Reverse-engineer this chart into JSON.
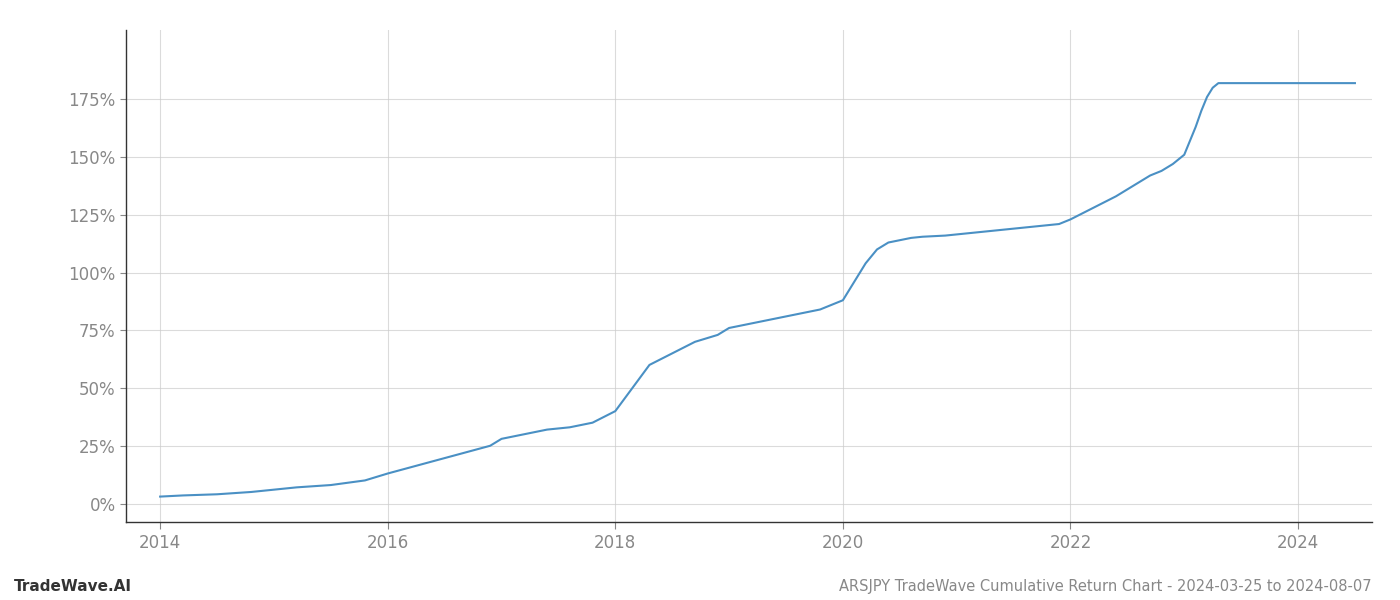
{
  "title": "ARSJPY TradeWave Cumulative Return Chart - 2024-03-25 to 2024-08-07",
  "watermark": "TradeWave.AI",
  "line_color": "#4a90c4",
  "background_color": "#ffffff",
  "grid_color": "#cccccc",
  "x_years": [
    2014,
    2016,
    2018,
    2020,
    2022,
    2024
  ],
  "data_points": [
    [
      2014.0,
      3
    ],
    [
      2014.2,
      3.5
    ],
    [
      2014.5,
      4
    ],
    [
      2014.8,
      5
    ],
    [
      2015.0,
      6
    ],
    [
      2015.2,
      7
    ],
    [
      2015.5,
      8
    ],
    [
      2015.8,
      10
    ],
    [
      2016.0,
      13
    ],
    [
      2016.3,
      17
    ],
    [
      2016.6,
      21
    ],
    [
      2016.9,
      25
    ],
    [
      2017.0,
      28
    ],
    [
      2017.2,
      30
    ],
    [
      2017.4,
      32
    ],
    [
      2017.6,
      33
    ],
    [
      2017.8,
      35
    ],
    [
      2018.0,
      40
    ],
    [
      2018.15,
      50
    ],
    [
      2018.3,
      60
    ],
    [
      2018.5,
      65
    ],
    [
      2018.7,
      70
    ],
    [
      2018.9,
      73
    ],
    [
      2019.0,
      76
    ],
    [
      2019.2,
      78
    ],
    [
      2019.4,
      80
    ],
    [
      2019.6,
      82
    ],
    [
      2019.8,
      84
    ],
    [
      2020.0,
      88
    ],
    [
      2020.1,
      96
    ],
    [
      2020.2,
      104
    ],
    [
      2020.3,
      110
    ],
    [
      2020.4,
      113
    ],
    [
      2020.5,
      114
    ],
    [
      2020.6,
      115
    ],
    [
      2020.7,
      115.5
    ],
    [
      2020.9,
      116
    ],
    [
      2021.1,
      117
    ],
    [
      2021.3,
      118
    ],
    [
      2021.5,
      119
    ],
    [
      2021.7,
      120
    ],
    [
      2021.9,
      121
    ],
    [
      2022.0,
      123
    ],
    [
      2022.2,
      128
    ],
    [
      2022.4,
      133
    ],
    [
      2022.5,
      136
    ],
    [
      2022.6,
      139
    ],
    [
      2022.7,
      142
    ],
    [
      2022.8,
      144
    ],
    [
      2022.9,
      147
    ],
    [
      2023.0,
      151
    ],
    [
      2023.05,
      157
    ],
    [
      2023.1,
      163
    ],
    [
      2023.15,
      170
    ],
    [
      2023.2,
      176
    ],
    [
      2023.25,
      180
    ],
    [
      2023.3,
      182
    ],
    [
      2023.4,
      182
    ],
    [
      2023.5,
      182
    ],
    [
      2023.6,
      182
    ],
    [
      2023.7,
      182
    ],
    [
      2023.8,
      182
    ],
    [
      2023.9,
      182
    ],
    [
      2024.0,
      182
    ],
    [
      2024.1,
      182
    ],
    [
      2024.2,
      182
    ],
    [
      2024.3,
      182
    ],
    [
      2024.4,
      182
    ],
    [
      2024.5,
      182
    ]
  ],
  "yticks": [
    0,
    25,
    50,
    75,
    100,
    125,
    150,
    175
  ],
  "ylim": [
    -8,
    205
  ],
  "xlim": [
    2013.7,
    2024.65
  ],
  "title_fontsize": 10.5,
  "watermark_fontsize": 11,
  "tick_fontsize": 12,
  "line_width": 1.5,
  "spine_color": "#333333",
  "tick_color": "#888888",
  "grid_alpha": 0.7
}
